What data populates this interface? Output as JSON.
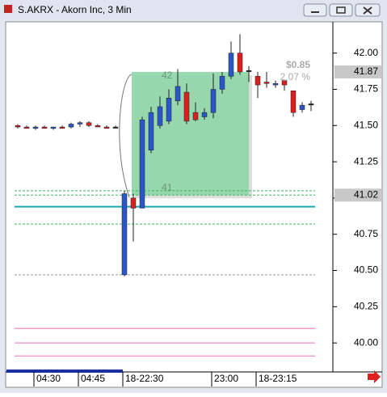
{
  "window_title": "S.AKRX - Akorn Inc, 3 Min",
  "chart_data": {
    "type": "candlestick",
    "categories": [
      null,
      null,
      "04:30",
      null,
      null,
      null,
      null,
      "04:45",
      null,
      null,
      null,
      null,
      "18-22:30",
      null,
      null,
      null,
      null,
      null,
      null,
      null,
      null,
      null,
      "23:00",
      null,
      null,
      null,
      null,
      "18-23:15",
      null,
      null,
      null,
      null,
      null,
      null
    ],
    "open": [
      41.5,
      41.49,
      41.48,
      41.49,
      41.48,
      41.49,
      41.49,
      41.51,
      41.52,
      41.5,
      41.49,
      41.49,
      40.47,
      41.0,
      40.93,
      41.33,
      41.5,
      41.53,
      41.67,
      41.73,
      41.59,
      41.56,
      41.59,
      41.75,
      41.84,
      42.0,
      41.88,
      41.84,
      41.8,
      41.78,
      41.81,
      41.74,
      41.61,
      41.65
    ],
    "high": [
      41.51,
      41.5,
      41.5,
      41.5,
      41.49,
      41.5,
      41.52,
      41.53,
      41.53,
      41.51,
      41.5,
      41.5,
      41.05,
      41.03,
      41.56,
      41.63,
      41.7,
      41.75,
      41.89,
      41.79,
      41.66,
      41.62,
      41.86,
      41.87,
      42.08,
      42.13,
      41.91,
      41.87,
      41.87,
      41.81,
      41.81,
      41.74,
      41.66,
      41.67
    ],
    "low": [
      41.48,
      41.48,
      41.47,
      41.48,
      41.47,
      41.48,
      41.48,
      41.49,
      41.49,
      41.49,
      41.48,
      41.48,
      40.46,
      40.7,
      40.93,
      41.31,
      41.48,
      41.51,
      41.64,
      41.51,
      41.53,
      41.54,
      41.55,
      41.72,
      41.82,
      41.85,
      41.8,
      41.69,
      41.76,
      41.76,
      41.74,
      41.56,
      41.59,
      41.6
    ],
    "close": [
      41.49,
      41.48,
      41.49,
      41.48,
      41.49,
      41.48,
      41.51,
      41.52,
      41.5,
      41.49,
      41.48,
      41.49,
      41.03,
      40.93,
      41.54,
      41.59,
      41.63,
      41.69,
      41.77,
      41.53,
      41.54,
      41.59,
      41.75,
      41.84,
      42.0,
      41.87,
      41.88,
      41.78,
      41.79,
      41.79,
      41.78,
      41.59,
      41.64,
      41.65
    ],
    "up_color": "#2a56c8",
    "down_color": "#d82020",
    "ylim": [
      39.8,
      42.21
    ],
    "yticks": [
      {
        "value": 42,
        "label": "42.00"
      },
      {
        "value": 41.75,
        "label": "41.75"
      },
      {
        "value": 41.5,
        "label": "41.50"
      },
      {
        "value": 41.25,
        "label": "41.25"
      },
      {
        "value": 41,
        "label": "41.00"
      },
      {
        "value": 40.75,
        "label": "40.75"
      },
      {
        "value": 40.5,
        "label": "40.50"
      },
      {
        "value": 40.25,
        "label": "40.25"
      },
      {
        "value": 40,
        "label": "40.00"
      }
    ],
    "price_markers": [
      41.87,
      41.02
    ],
    "box_top_label": "42",
    "box_bottom_label": "41",
    "annotations": [
      "$0.85",
      "2.07 %"
    ],
    "levels": [
      {
        "value": 41.05,
        "color": "#3cb85c",
        "dash": true
      },
      {
        "value": 41.02,
        "color": "#3cb85c",
        "dash": true
      },
      {
        "value": 40.82,
        "color": "#3cb85c",
        "dash": true
      },
      {
        "value": 40.94,
        "color": "#1aa8b0",
        "dash": false
      },
      {
        "value": 40.47,
        "color": "#999999",
        "dash": true
      },
      {
        "value": 40.1,
        "color": "#f08cc8",
        "dash": false
      },
      {
        "value": 40.0,
        "color": "#f08cc8",
        "dash": false
      },
      {
        "value": 39.91,
        "color": "#f08cc8",
        "dash": false
      }
    ]
  }
}
